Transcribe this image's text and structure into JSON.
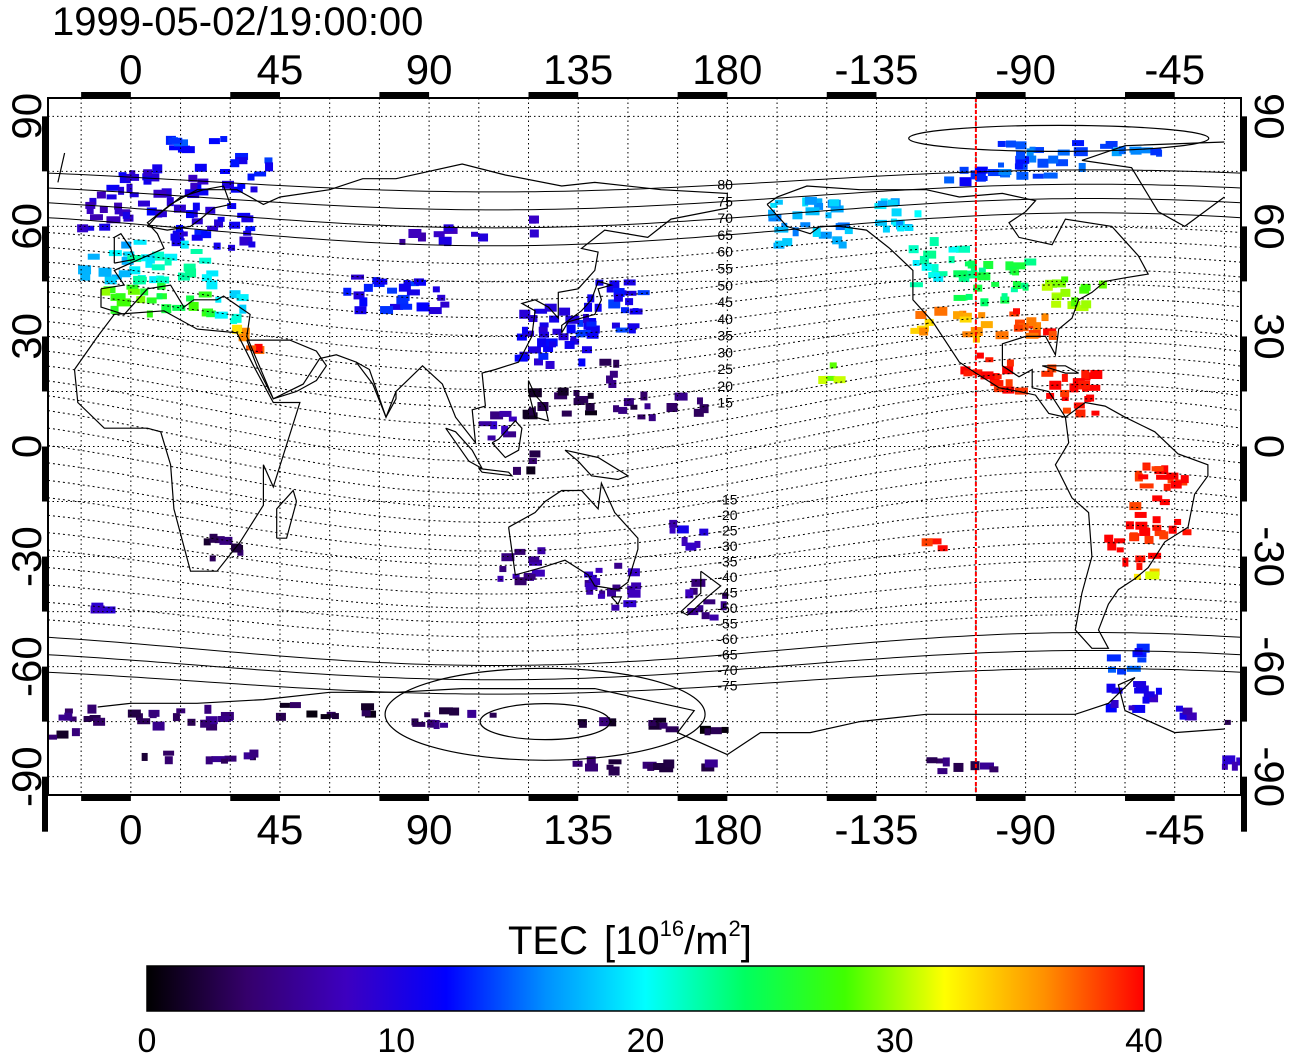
{
  "timestamp": "1999-05-02/19:00:00",
  "colorbar": {
    "title_prefix": "TEC",
    "title_unit_base": "10",
    "title_unit_exp": "16",
    "title_unit_mid": "/m",
    "title_unit_exp2": "2",
    "title_unit_close": "]",
    "title_unit_open": "[",
    "min": 0,
    "max": 40,
    "tick_labels": [
      "0",
      "10",
      "20",
      "30",
      "40"
    ],
    "stops": [
      "#000000",
      "#35006b",
      "#3d00c0",
      "#0000ff",
      "#0090ff",
      "#00ffff",
      "#00ff60",
      "#40ff00",
      "#ffff00",
      "#ff9000",
      "#ff0000"
    ]
  },
  "map": {
    "lon_ticks": [
      0,
      45,
      90,
      135,
      180,
      -135,
      -90,
      -45
    ],
    "lon_tick_labels": [
      "0",
      "45",
      "90",
      "135",
      "180",
      "-135",
      "-90",
      "-45"
    ],
    "lat_ticks": [
      90,
      60,
      30,
      0,
      -30,
      -60,
      -90
    ],
    "lat_tick_labels": [
      "90",
      "60",
      "30",
      "0",
      "-30",
      "-60",
      "-90"
    ],
    "lon_range": [
      -25,
      335
    ],
    "lat_range": [
      -95,
      95
    ],
    "meridian_marker_lon": -105,
    "meridian_marker_color": "#ff0000",
    "dip_latitude_labels": [
      "80",
      "75",
      "70",
      "65",
      "60",
      "55",
      "50",
      "45",
      "40",
      "35",
      "30",
      "25",
      "20",
      "15",
      "-15",
      "-20",
      "-25",
      "-30",
      "-35",
      "-40",
      "-45",
      "-50",
      "-55",
      "-60",
      "-65",
      "-70",
      "-75"
    ],
    "tec_patches": [
      {
        "lon": -8,
        "lat": 64,
        "w": 16,
        "h": 10,
        "tec": 9
      },
      {
        "lon": 8,
        "lat": 70,
        "w": 28,
        "h": 14,
        "tec": 10
      },
      {
        "lon": 20,
        "lat": 82,
        "w": 18,
        "h": 6,
        "tec": 13
      },
      {
        "lon": 25,
        "lat": 60,
        "w": 26,
        "h": 12,
        "tec": 11
      },
      {
        "lon": 35,
        "lat": 75,
        "w": 14,
        "h": 10,
        "tec": 12
      },
      {
        "lon": -6,
        "lat": 50,
        "w": 16,
        "h": 10,
        "tec": 18
      },
      {
        "lon": 12,
        "lat": 50,
        "w": 26,
        "h": 12,
        "tec": 21
      },
      {
        "lon": -2,
        "lat": 40,
        "w": 14,
        "h": 8,
        "tec": 28
      },
      {
        "lon": 14,
        "lat": 40,
        "w": 22,
        "h": 8,
        "tec": 26
      },
      {
        "lon": 30,
        "lat": 38,
        "w": 10,
        "h": 8,
        "tec": 20
      },
      {
        "lon": 32,
        "lat": 30,
        "w": 6,
        "h": 4,
        "tec": 35
      },
      {
        "lon": 38,
        "lat": 28,
        "w": 4,
        "h": 4,
        "tec": 39
      },
      {
        "lon": 70,
        "lat": 45,
        "w": 10,
        "h": 6,
        "tec": 11
      },
      {
        "lon": 78,
        "lat": 42,
        "w": 22,
        "h": 10,
        "tec": 12
      },
      {
        "lon": 92,
        "lat": 40,
        "w": 8,
        "h": 6,
        "tec": 11
      },
      {
        "lon": 85,
        "lat": 57,
        "w": 8,
        "h": 4,
        "tec": 7
      },
      {
        "lon": 100,
        "lat": 58,
        "w": 14,
        "h": 6,
        "tec": 9
      },
      {
        "lon": 120,
        "lat": 60,
        "w": 6,
        "h": 4,
        "tec": 8
      },
      {
        "lon": 145,
        "lat": 38,
        "w": 20,
        "h": 16,
        "tec": 12
      },
      {
        "lon": 128,
        "lat": 30,
        "w": 26,
        "h": 16,
        "tec": 11
      },
      {
        "lon": 148,
        "lat": 20,
        "w": 10,
        "h": 6,
        "tec": 5
      },
      {
        "lon": 122,
        "lat": 12,
        "w": 8,
        "h": 8,
        "tec": 3
      },
      {
        "lon": 135,
        "lat": 12,
        "w": 14,
        "h": 8,
        "tec": 2
      },
      {
        "lon": 152,
        "lat": 10,
        "w": 12,
        "h": 8,
        "tec": 4
      },
      {
        "lon": 168,
        "lat": 12,
        "w": 10,
        "h": 6,
        "tec": 4
      },
      {
        "lon": 110,
        "lat": 5,
        "w": 12,
        "h": 8,
        "tec": 7
      },
      {
        "lon": 118,
        "lat": -4,
        "w": 8,
        "h": 6,
        "tec": 3
      },
      {
        "lon": 118,
        "lat": -33,
        "w": 14,
        "h": 10,
        "tec": 6
      },
      {
        "lon": 147,
        "lat": -38,
        "w": 18,
        "h": 12,
        "tec": 7
      },
      {
        "lon": 174,
        "lat": -42,
        "w": 12,
        "h": 10,
        "tec": 6
      },
      {
        "lon": 168,
        "lat": -25,
        "w": 10,
        "h": 8,
        "tec": 9
      },
      {
        "lon": 28,
        "lat": -28,
        "w": 14,
        "h": 8,
        "tec": 3
      },
      {
        "lon": -8,
        "lat": -44,
        "w": 8,
        "h": 4,
        "tec": 9
      },
      {
        "lon": 210,
        "lat": 21,
        "w": 8,
        "h": 6,
        "tec": 29
      },
      {
        "lon": 205,
        "lat": 60,
        "w": 24,
        "h": 14,
        "tec": 17
      },
      {
        "lon": 230,
        "lat": 62,
        "w": 18,
        "h": 10,
        "tec": 18
      },
      {
        "lon": 250,
        "lat": 75,
        "w": 14,
        "h": 6,
        "tec": 13
      },
      {
        "lon": 275,
        "lat": 78,
        "w": 30,
        "h": 10,
        "tec": 14
      },
      {
        "lon": 303,
        "lat": 80,
        "w": 20,
        "h": 6,
        "tec": 15
      },
      {
        "lon": 245,
        "lat": 50,
        "w": 18,
        "h": 12,
        "tec": 21
      },
      {
        "lon": 262,
        "lat": 45,
        "w": 26,
        "h": 12,
        "tec": 24
      },
      {
        "lon": 285,
        "lat": 42,
        "w": 18,
        "h": 10,
        "tec": 29
      },
      {
        "lon": 248,
        "lat": 33,
        "w": 22,
        "h": 8,
        "tec": 35
      },
      {
        "lon": 272,
        "lat": 33,
        "w": 22,
        "h": 8,
        "tec": 38
      },
      {
        "lon": 260,
        "lat": 20,
        "w": 18,
        "h": 10,
        "tec": 40
      },
      {
        "lon": 285,
        "lat": 15,
        "w": 18,
        "h": 14,
        "tec": 40
      },
      {
        "lon": 310,
        "lat": -15,
        "w": 18,
        "h": 20,
        "tec": 40
      },
      {
        "lon": 302,
        "lat": -28,
        "w": 14,
        "h": 10,
        "tec": 40
      },
      {
        "lon": 306,
        "lat": -36,
        "w": 6,
        "h": 4,
        "tec": 33
      },
      {
        "lon": 243,
        "lat": -27,
        "w": 6,
        "h": 4,
        "tec": 40
      },
      {
        "lon": 300,
        "lat": -58,
        "w": 12,
        "h": 8,
        "tec": 13
      },
      {
        "lon": 303,
        "lat": -68,
        "w": 16,
        "h": 10,
        "tec": 10
      },
      {
        "lon": 320,
        "lat": -72,
        "w": 8,
        "h": 6,
        "tec": 9
      },
      {
        "lon": 330,
        "lat": -86,
        "w": 20,
        "h": 3,
        "tec": 8
      },
      {
        "lon": 20,
        "lat": -85,
        "w": 40,
        "h": 3,
        "tec": 4
      },
      {
        "lon": 155,
        "lat": -87,
        "w": 50,
        "h": 3,
        "tec": 4
      },
      {
        "lon": 250,
        "lat": -87,
        "w": 30,
        "h": 3,
        "tec": 4
      },
      {
        "lon": 0,
        "lat": -74,
        "w": 60,
        "h": 5,
        "tec": 4
      },
      {
        "lon": 60,
        "lat": -72,
        "w": 30,
        "h": 4,
        "tec": 2
      },
      {
        "lon": 100,
        "lat": -74,
        "w": 30,
        "h": 4,
        "tec": 4
      },
      {
        "lon": 150,
        "lat": -76,
        "w": 30,
        "h": 4,
        "tec": 3
      },
      {
        "lon": 175,
        "lat": -78,
        "w": 14,
        "h": 3,
        "tec": 2
      },
      {
        "lon": -20,
        "lat": -78,
        "w": 10,
        "h": 4,
        "tec": 3
      }
    ]
  }
}
